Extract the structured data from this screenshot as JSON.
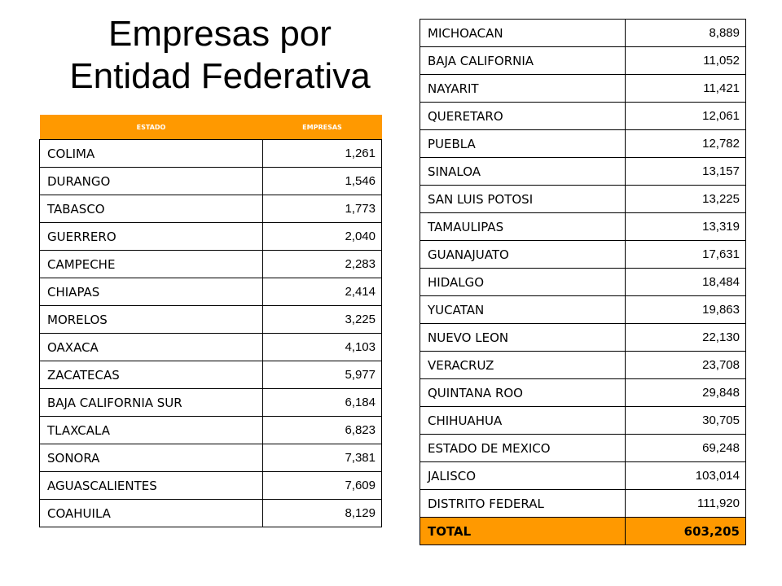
{
  "title": {
    "line1": "Empresas por",
    "line2": "Entidad Federativa"
  },
  "left_table": {
    "headers": [
      "ESTADO",
      "EMPRESAS"
    ],
    "rows": [
      [
        "COLIMA",
        "1,261"
      ],
      [
        "DURANGO",
        "1,546"
      ],
      [
        "TABASCO",
        "1,773"
      ],
      [
        "GUERRERO",
        "2,040"
      ],
      [
        "CAMPECHE",
        "2,283"
      ],
      [
        "CHIAPAS",
        "2,414"
      ],
      [
        "MORELOS",
        "3,225"
      ],
      [
        "OAXACA",
        "4,103"
      ],
      [
        "ZACATECAS",
        "5,977"
      ],
      [
        "BAJA CALIFORNIA SUR",
        "6,184"
      ],
      [
        "TLAXCALA",
        "6,823"
      ],
      [
        "SONORA",
        "7,381"
      ],
      [
        "AGUASCALIENTES",
        "7,609"
      ],
      [
        "COAHUILA",
        "8,129"
      ]
    ]
  },
  "right_table": {
    "rows": [
      [
        "MICHOACAN",
        "8,889"
      ],
      [
        "BAJA CALIFORNIA",
        "11,052"
      ],
      [
        "NAYARIT",
        "11,421"
      ],
      [
        "QUERETARO",
        "12,061"
      ],
      [
        "PUEBLA",
        "12,782"
      ],
      [
        "SINALOA",
        "13,157"
      ],
      [
        "SAN LUIS POTOSI",
        "13,225"
      ],
      [
        "TAMAULIPAS",
        "13,319"
      ],
      [
        "GUANAJUATO",
        "17,631"
      ],
      [
        "HIDALGO",
        "18,484"
      ],
      [
        "YUCATAN",
        "19,863"
      ],
      [
        "NUEVO LEON",
        "22,130"
      ],
      [
        "VERACRUZ",
        "23,708"
      ],
      [
        "QUINTANA ROO",
        "29,848"
      ],
      [
        "CHIHUAHUA",
        "30,705"
      ],
      [
        "ESTADO DE MEXICO",
        "69,248"
      ],
      [
        "JALISCO",
        "103,014"
      ],
      [
        "DISTRITO FEDERAL",
        "111,920"
      ]
    ],
    "total": [
      "TOTAL",
      "603,205"
    ]
  },
  "colors": {
    "header_bg": "#ff9900",
    "header_text": "#ffffff"
  }
}
